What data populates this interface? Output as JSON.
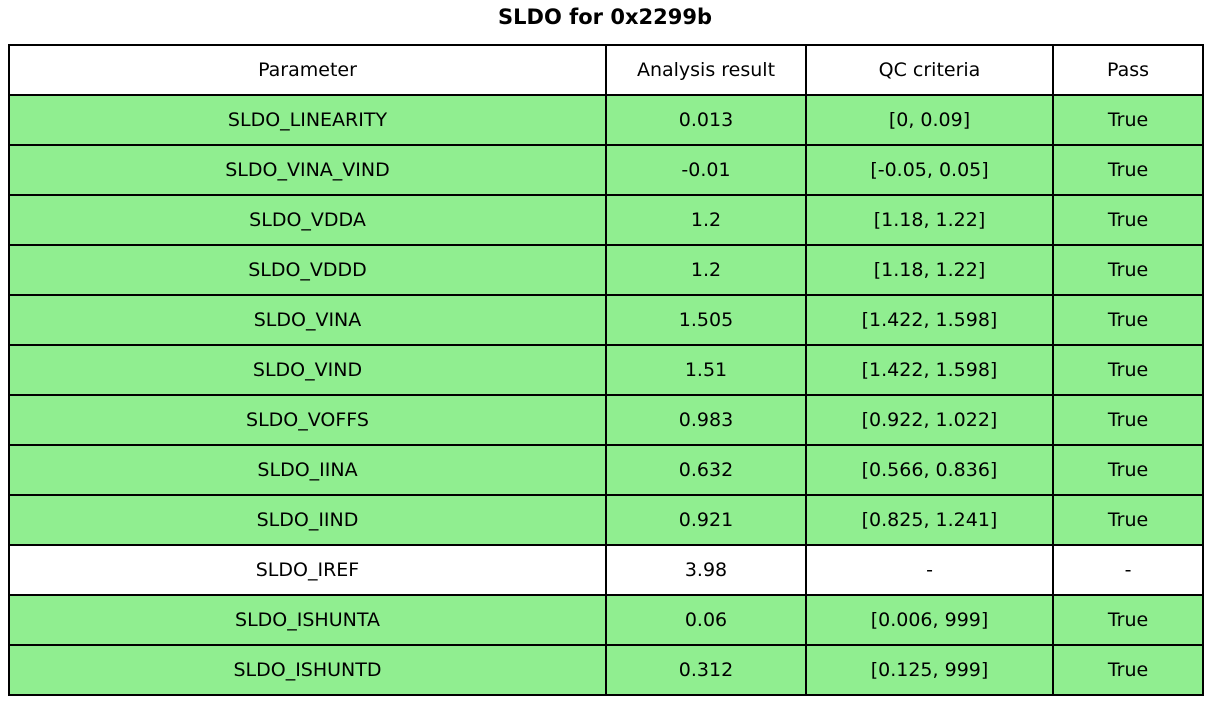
{
  "title": "SLDO for 0x2299b",
  "colors": {
    "pass_row": "#90EE90",
    "neutral_row": "#FFFFFF",
    "header_row": "#FFFFFF",
    "border": "#000000",
    "text": "#000000"
  },
  "chart_data": {
    "type": "table",
    "title": "SLDO for 0x2299b",
    "columns": [
      "Parameter",
      "Analysis result",
      "QC criteria",
      "Pass"
    ],
    "rows": [
      {
        "cells": [
          "SLDO_LINEARITY",
          "0.013",
          "[0, 0.09]",
          "True"
        ],
        "row_color": "#90EE90"
      },
      {
        "cells": [
          "SLDO_VINA_VIND",
          "-0.01",
          "[-0.05, 0.05]",
          "True"
        ],
        "row_color": "#90EE90"
      },
      {
        "cells": [
          "SLDO_VDDA",
          "1.2",
          "[1.18, 1.22]",
          "True"
        ],
        "row_color": "#90EE90"
      },
      {
        "cells": [
          "SLDO_VDDD",
          "1.2",
          "[1.18, 1.22]",
          "True"
        ],
        "row_color": "#90EE90"
      },
      {
        "cells": [
          "SLDO_VINA",
          "1.505",
          "[1.422, 1.598]",
          "True"
        ],
        "row_color": "#90EE90"
      },
      {
        "cells": [
          "SLDO_VIND",
          "1.51",
          "[1.422, 1.598]",
          "True"
        ],
        "row_color": "#90EE90"
      },
      {
        "cells": [
          "SLDO_VOFFS",
          "0.983",
          "[0.922, 1.022]",
          "True"
        ],
        "row_color": "#90EE90"
      },
      {
        "cells": [
          "SLDO_IINA",
          "0.632",
          "[0.566, 0.836]",
          "True"
        ],
        "row_color": "#90EE90"
      },
      {
        "cells": [
          "SLDO_IIND",
          "0.921",
          "[0.825, 1.241]",
          "True"
        ],
        "row_color": "#90EE90"
      },
      {
        "cells": [
          "SLDO_IREF",
          "3.98",
          "-",
          "-"
        ],
        "row_color": "#FFFFFF"
      },
      {
        "cells": [
          "SLDO_ISHUNTA",
          "0.06",
          "[0.006, 999]",
          "True"
        ],
        "row_color": "#90EE90"
      },
      {
        "cells": [
          "SLDO_ISHUNTD",
          "0.312",
          "[0.125, 999]",
          "True"
        ],
        "row_color": "#90EE90"
      }
    ],
    "legend_position": "none",
    "grid": "full-cell-borders"
  }
}
